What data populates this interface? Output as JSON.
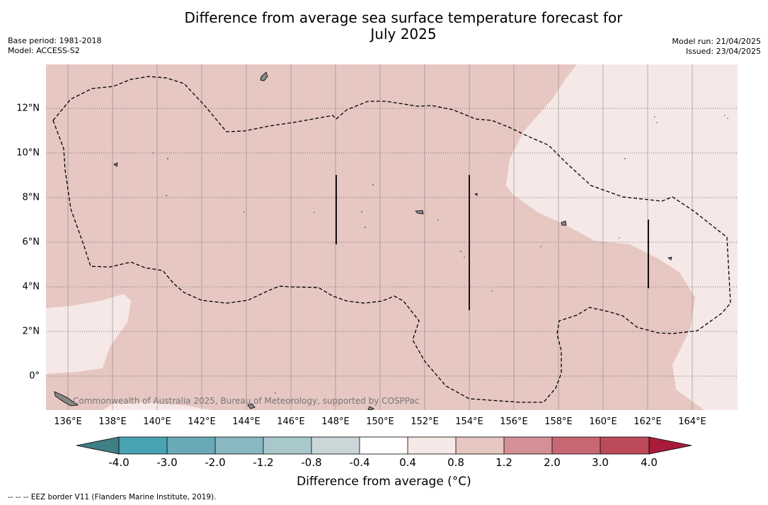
{
  "title_line1": "Difference from average sea surface temperature forecast for",
  "title_line2": "July 2025",
  "meta_left": [
    "Base period: 1981-2018",
    "Model: ACCESS-S2"
  ],
  "meta_right": [
    "Model run: 21/04/2025",
    "Issued: 23/04/2025"
  ],
  "map": {
    "lon_labels": [
      "136°E",
      "138°E",
      "140°E",
      "142°E",
      "144°E",
      "146°E",
      "148°E",
      "150°E",
      "152°E",
      "154°E",
      "156°E",
      "158°E",
      "160°E",
      "162°E",
      "164°E"
    ],
    "lat_labels": [
      "12°N",
      "10°N",
      "8°N",
      "6°N",
      "4°N",
      "2°N",
      "0°"
    ],
    "copyright": "Commonwealth of Australia 2025, Bureau of Meteorology, supported by COSPPac",
    "colors": {
      "anomaly_0_4_0_8": "#f5e8e6",
      "anomaly_0_8_1_2": "#e6c7c2",
      "land": "#888888"
    }
  },
  "colorbar": {
    "title": "Difference from average (°C)",
    "ticks": [
      "-4.0",
      "-3.0",
      "-2.0",
      "-1.2",
      "-0.8",
      "-0.4",
      "0.4",
      "0.8",
      "1.2",
      "2.0",
      "3.0",
      "4.0"
    ],
    "colors": [
      "#3f7f86",
      "#4aa3b2",
      "#6aaab8",
      "#88b8c2",
      "#a8c8cc",
      "#cad6d8",
      "#ffffff",
      "#f5e8e6",
      "#e6c7c2",
      "#d58f96",
      "#c86774",
      "#bd4a5a",
      "#a81c3a"
    ]
  },
  "footer": "-- -- -- EEZ border V11 (Flanders Marine Institute, 2019)."
}
